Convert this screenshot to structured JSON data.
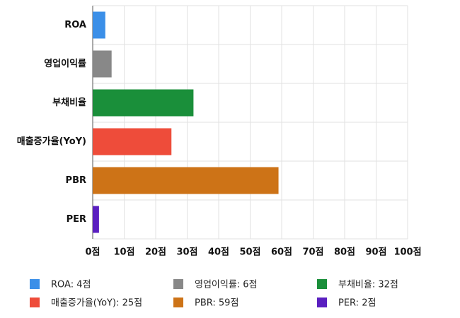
{
  "chart_data": {
    "type": "hbar",
    "categories": [
      "ROA",
      "영업이익률",
      "부채비율",
      "매출증가율(YoY)",
      "PBR",
      "PER"
    ],
    "values": [
      4,
      6,
      32,
      25,
      59,
      2
    ],
    "colors": [
      "#3b8fe8",
      "#888888",
      "#1a8f3a",
      "#ee4c3a",
      "#cd7317",
      "#5a1fc0"
    ],
    "xlim": [
      0,
      100
    ],
    "xticks": [
      {
        "value": 0,
        "label": "0점"
      },
      {
        "value": 10,
        "label": "10점"
      },
      {
        "value": 20,
        "label": "20점"
      },
      {
        "value": 30,
        "label": "30점"
      },
      {
        "value": 40,
        "label": "40점"
      },
      {
        "value": 50,
        "label": "50점"
      },
      {
        "value": 60,
        "label": "60점"
      },
      {
        "value": 70,
        "label": "70점"
      },
      {
        "value": 80,
        "label": "80점"
      },
      {
        "value": 90,
        "label": "90점"
      },
      {
        "value": 100,
        "label": "100점"
      }
    ],
    "legend": [
      "ROA: 4점",
      "영업이익률: 6점",
      "부채비율: 32점",
      "매출증가율(YoY): 25점",
      "PBR: 59점",
      "PER: 2점"
    ],
    "grid": true
  }
}
